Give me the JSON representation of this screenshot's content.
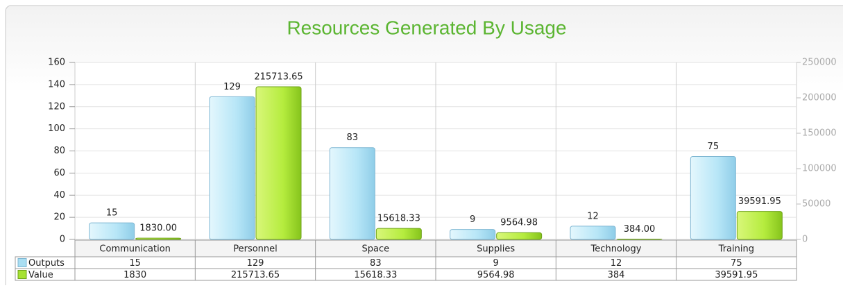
{
  "chart_data": {
    "type": "bar",
    "title": "Resources Generated By Usage",
    "categories": [
      "Communication",
      "Personnel",
      "Space",
      "Supplies",
      "Technology",
      "Training"
    ],
    "series": [
      {
        "name": "Outputs",
        "color": "#a9def2",
        "values": [
          15,
          129,
          83,
          9,
          12,
          75
        ]
      },
      {
        "name": "Value",
        "color": "#a6e232",
        "axis": "y2",
        "values": [
          1830,
          215713.65,
          15618.33,
          9564.98,
          384,
          39591.95
        ],
        "value_labels": [
          "1830.00",
          "215713.65",
          "15618.33",
          "9564.98",
          "384.00",
          "39591.95"
        ]
      }
    ],
    "ylim": [
      0,
      160
    ],
    "yticks": [
      0,
      20,
      40,
      60,
      80,
      100,
      120,
      140,
      160
    ],
    "y2lim": [
      0,
      250000
    ],
    "y2ticks": [
      0,
      50000,
      100000,
      150000,
      200000,
      250000
    ],
    "grid": true
  }
}
